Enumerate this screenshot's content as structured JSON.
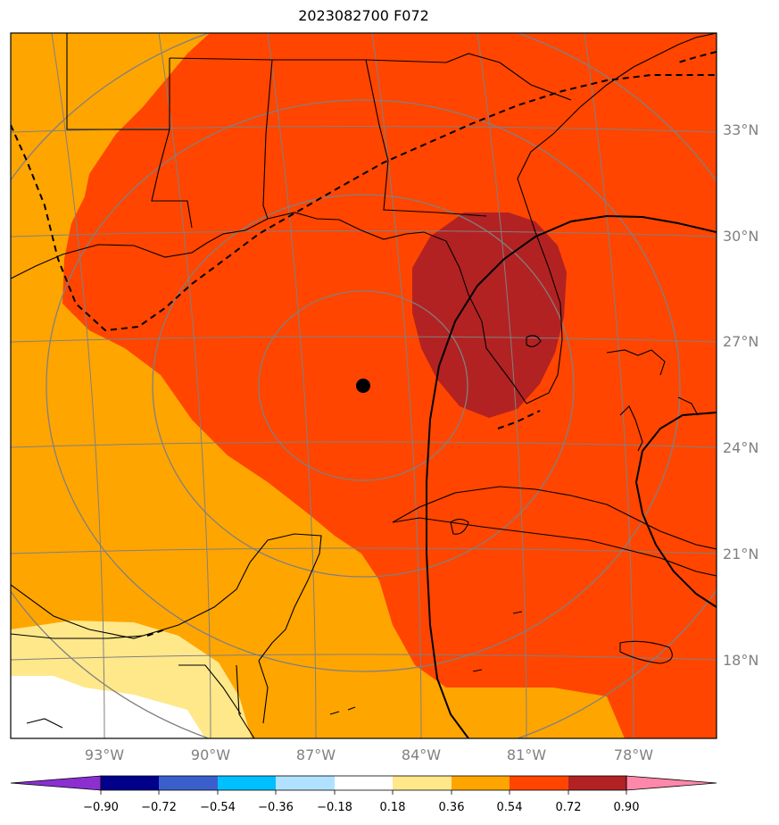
{
  "title": "2023082700 F072",
  "map": {
    "latitude_labels": [
      "33°N",
      "30°N",
      "27°N",
      "24°N",
      "21°N",
      "18°N"
    ],
    "longitude_labels": [
      "93°W",
      "90°W",
      "87°W",
      "84°W",
      "81°W",
      "78°W"
    ],
    "center_marker": "storm-center-dot"
  },
  "colorbar": {
    "tick_labels": [
      "−0.90",
      "−0.72",
      "−0.54",
      "−0.36",
      "−0.18",
      "0.18",
      "0.36",
      "0.54",
      "0.72",
      "0.90"
    ],
    "colors": [
      "#8b2fd1",
      "#00008b",
      "#3a5fcd",
      "#00bfff",
      "#b0e2ff",
      "#ffffff",
      "#ffe88a",
      "#ffa500",
      "#ff4500",
      "#b22222",
      "#ff88aa"
    ]
  }
}
